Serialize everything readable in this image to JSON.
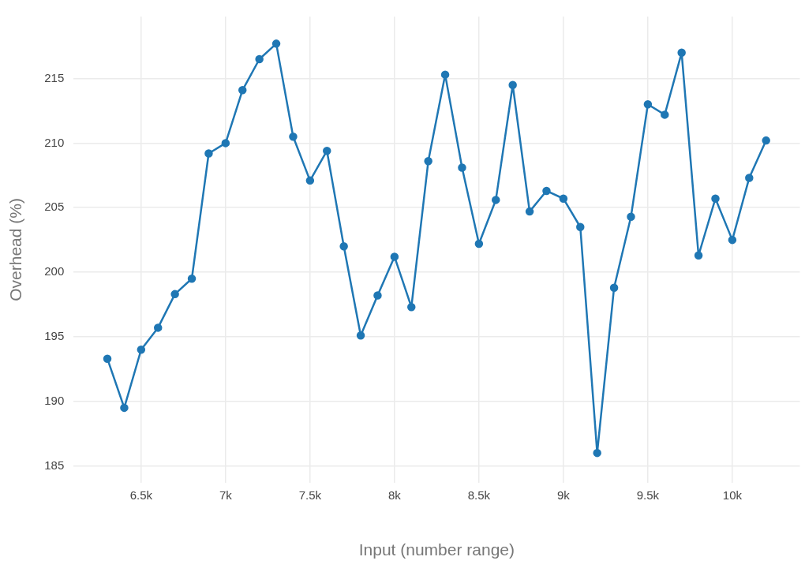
{
  "chart_data": {
    "type": "line",
    "xlabel": "Input (number range)",
    "ylabel": "Overhead (%)",
    "x": [
      6300,
      6400,
      6500,
      6600,
      6700,
      6800,
      6900,
      7000,
      7100,
      7200,
      7300,
      7400,
      7500,
      7600,
      7700,
      7800,
      7900,
      8000,
      8100,
      8200,
      8300,
      8400,
      8500,
      8600,
      8700,
      8800,
      8900,
      9000,
      9100,
      9200,
      9300,
      9400,
      9500,
      9600,
      9700,
      9800,
      9900,
      10000,
      10100,
      10200
    ],
    "series": [
      {
        "color": "#1f77b4",
        "values": [
          193.3,
          189.5,
          194.0,
          195.7,
          198.3,
          199.5,
          209.2,
          210.0,
          214.1,
          216.5,
          217.7,
          210.5,
          207.1,
          209.4,
          202.0,
          195.1,
          198.2,
          201.2,
          197.3,
          208.6,
          215.3,
          208.1,
          202.2,
          205.6,
          214.5,
          204.7,
          206.3,
          205.7,
          203.5,
          186.0,
          198.8,
          204.3,
          213.0,
          212.2,
          217.0,
          201.3,
          205.7,
          202.5,
          207.3,
          210.2
        ]
      }
    ],
    "xlim": [
      6100,
      10400
    ],
    "xticks": [
      {
        "value": 6500,
        "label": "6.5k"
      },
      {
        "value": 7000,
        "label": "7k"
      },
      {
        "value": 7500,
        "label": "7.5k"
      },
      {
        "value": 8000,
        "label": "8k"
      },
      {
        "value": 8500,
        "label": "8.5k"
      },
      {
        "value": 9000,
        "label": "9k"
      },
      {
        "value": 9500,
        "label": "9.5k"
      },
      {
        "value": 10000,
        "label": "10k"
      }
    ],
    "ylim": [
      183.7,
      219.8
    ],
    "yticks": [
      185,
      190,
      195,
      200,
      205,
      210,
      215
    ],
    "grid": true,
    "marker": "circle",
    "line_style": "solid"
  }
}
